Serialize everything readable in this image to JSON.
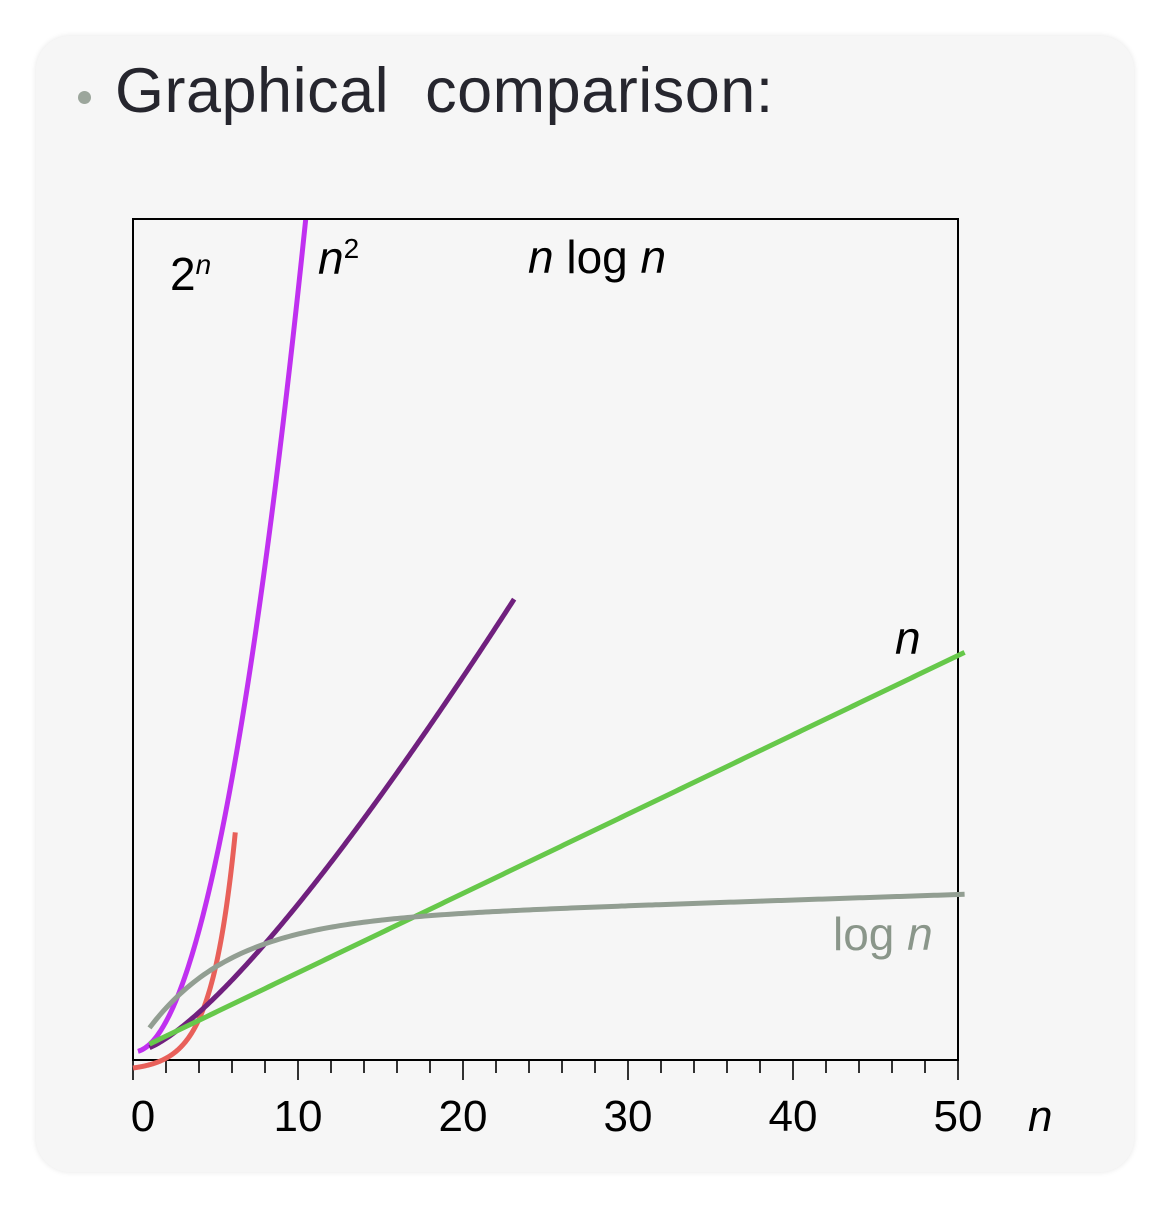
{
  "slide": {
    "bullet_text": "Graphical  comparison:"
  },
  "chart_data": {
    "type": "line",
    "xlabel": "n",
    "ylabel": "",
    "xlim": [
      0,
      50
    ],
    "x_ticks": [
      0,
      10,
      20,
      30,
      40,
      50
    ],
    "x_tick_labels": [
      "0",
      "10",
      "20",
      "30",
      "40",
      "50"
    ],
    "minor_tick_step": 2,
    "y_axis_ticks": false,
    "grid": false,
    "series": [
      {
        "key": "exp",
        "label_base": "2",
        "label_sup": "n",
        "color": "#e8605a",
        "func": "pow2"
      },
      {
        "key": "sq",
        "label_base": "n",
        "label_sup": "2",
        "color": "#c030f0",
        "func": "square"
      },
      {
        "key": "nlogn",
        "label": "n log n",
        "color": "#70207e",
        "func": "nlogn"
      },
      {
        "key": "lin",
        "label": "n",
        "color": "#66c84a",
        "func": "linear"
      },
      {
        "key": "log",
        "label": "log n",
        "color": "#929e92",
        "func": "log"
      }
    ]
  }
}
